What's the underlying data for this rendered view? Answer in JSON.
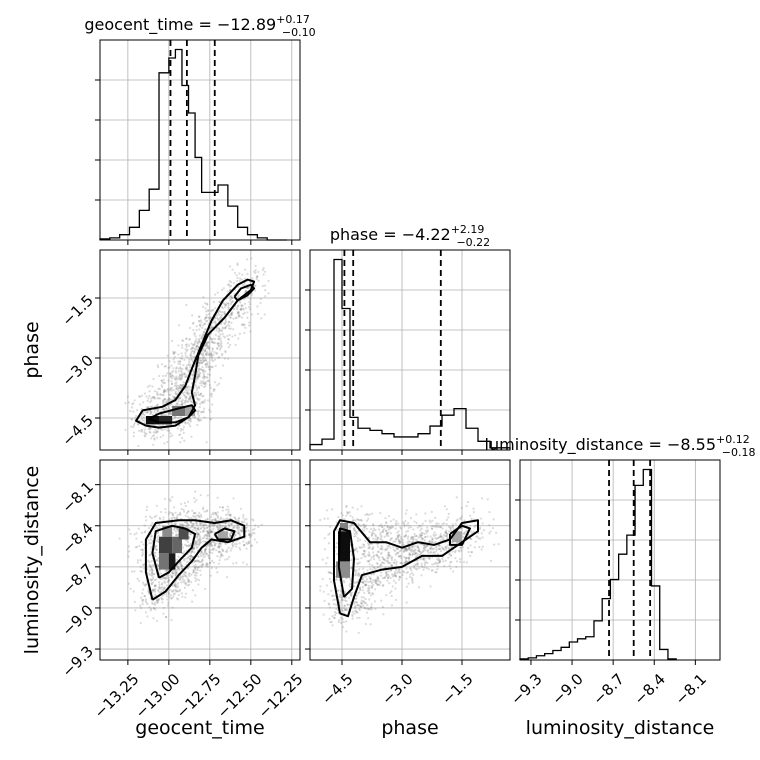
{
  "chart_data": {
    "type": "corner",
    "parameters": [
      "geocent_time",
      "phase",
      "luminosity_distance"
    ],
    "axis_labels": {
      "geocent_time": "geocent_time",
      "phase": "phase",
      "luminosity_distance": "luminosity_distance"
    },
    "ranges": {
      "geocent_time": [
        -13.42,
        -12.2
      ],
      "phase": [
        -5.3,
        -0.3
      ],
      "luminosity_distance": [
        -9.38,
        -7.92
      ]
    },
    "ticks": {
      "geocent_time": [
        -13.25,
        -13.0,
        -12.75,
        -12.5,
        -12.25
      ],
      "phase": [
        -4.5,
        -3.0,
        -1.5
      ],
      "luminosity_distance": [
        -9.3,
        -9.0,
        -8.7,
        -8.4,
        -8.1
      ]
    },
    "tick_labels": {
      "geocent_time": [
        "−13.25",
        "−13.00",
        "−12.75",
        "−12.50",
        "−12.25"
      ],
      "phase": [
        "−4.5",
        "−3.0",
        "−1.5"
      ],
      "luminosity_distance": [
        "−9.3",
        "−9.0",
        "−8.7",
        "−8.4",
        "−8.1"
      ]
    },
    "titles": {
      "geocent_time": {
        "name": "geocent_time",
        "median": "−12.89",
        "plus": "+0.17",
        "minus": "−0.10"
      },
      "phase": {
        "name": "phase",
        "median": "−4.22",
        "plus": "+2.19",
        "minus": "−0.22"
      },
      "luminosity_distance": {
        "name": "luminosity_distance",
        "median": "−8.55",
        "plus": "+0.12",
        "minus": "−0.18"
      }
    },
    "quantiles": {
      "geocent_time": [
        -12.99,
        -12.89,
        -12.72
      ],
      "phase": [
        -4.44,
        -4.22,
        -2.03
      ],
      "luminosity_distance": [
        -8.73,
        -8.55,
        -8.43
      ]
    },
    "histograms": {
      "geocent_time": {
        "edges": [
          -13.42,
          -13.36,
          -13.3,
          -13.24,
          -13.18,
          -13.12,
          -13.06,
          -13.0,
          -12.96,
          -12.92,
          -12.88,
          -12.84,
          -12.8,
          -12.76,
          -12.7,
          -12.64,
          -12.58,
          -12.52,
          -12.46,
          -12.4,
          -12.34,
          -12.28
        ],
        "counts": [
          1,
          2,
          5,
          12,
          28,
          48,
          158,
          172,
          180,
          146,
          120,
          78,
          45,
          45,
          52,
          32,
          12,
          5,
          2,
          0,
          0
        ]
      },
      "phase": {
        "edges": [
          -5.3,
          -5.0,
          -4.7,
          -4.5,
          -4.3,
          -4.1,
          -3.8,
          -3.5,
          -3.2,
          -2.9,
          -2.6,
          -2.3,
          -2.0,
          -1.7,
          -1.4,
          -1.1,
          -0.8,
          -0.3
        ],
        "counts": [
          5,
          10,
          175,
          130,
          30,
          20,
          18,
          15,
          12,
          12,
          15,
          22,
          32,
          38,
          20,
          8,
          2
        ]
      },
      "luminosity_distance": {
        "edges": [
          -9.38,
          -9.32,
          -9.26,
          -9.2,
          -9.14,
          -9.08,
          -9.02,
          -8.96,
          -8.9,
          -8.84,
          -8.78,
          -8.72,
          -8.66,
          -8.6,
          -8.54,
          -8.48,
          -8.42,
          -8.36,
          -8.3,
          -8.24
        ],
        "counts": [
          1,
          2,
          4,
          6,
          9,
          12,
          17,
          20,
          22,
          37,
          58,
          76,
          100,
          118,
          165,
          180,
          70,
          10,
          1
        ]
      }
    },
    "contours": {
      "phase_vs_geocent_time": {
        "outer": [
          [
            -13.14,
            -4.69
          ],
          [
            -13.2,
            -4.57
          ],
          [
            -13.16,
            -4.31
          ],
          [
            -13.04,
            -4.22
          ],
          [
            -12.96,
            -4.05
          ],
          [
            -12.9,
            -3.7
          ],
          [
            -12.86,
            -3.27
          ],
          [
            -12.8,
            -2.67
          ],
          [
            -12.74,
            -2.07
          ],
          [
            -12.67,
            -1.56
          ],
          [
            -12.58,
            -1.17
          ],
          [
            -12.52,
            -1.04
          ],
          [
            -12.48,
            -1.09
          ],
          [
            -12.5,
            -1.3
          ],
          [
            -12.58,
            -1.56
          ],
          [
            -12.66,
            -1.99
          ],
          [
            -12.76,
            -2.41
          ],
          [
            -12.82,
            -2.93
          ],
          [
            -12.84,
            -3.44
          ],
          [
            -12.86,
            -3.87
          ],
          [
            -12.84,
            -4.18
          ],
          [
            -12.88,
            -4.48
          ],
          [
            -12.96,
            -4.69
          ],
          [
            -13.06,
            -4.74
          ],
          [
            -13.14,
            -4.69
          ]
        ],
        "inner": [
          [
            -13.06,
            -4.61
          ],
          [
            -13.12,
            -4.52
          ],
          [
            -13.06,
            -4.39
          ],
          [
            -12.94,
            -4.26
          ],
          [
            -12.86,
            -4.18
          ],
          [
            -12.84,
            -4.31
          ],
          [
            -12.88,
            -4.48
          ],
          [
            -12.96,
            -4.61
          ],
          [
            -13.06,
            -4.61
          ]
        ],
        "upper": [
          [
            -12.6,
            -1.47
          ],
          [
            -12.56,
            -1.26
          ],
          [
            -12.5,
            -1.17
          ],
          [
            -12.48,
            -1.26
          ],
          [
            -12.52,
            -1.43
          ],
          [
            -12.58,
            -1.56
          ],
          [
            -12.6,
            -1.47
          ]
        ]
      },
      "luminosity_distance_vs_geocent_time": {
        "outer": [
          [
            -13.1,
            -8.94
          ],
          [
            -13.14,
            -8.74
          ],
          [
            -13.14,
            -8.5
          ],
          [
            -13.08,
            -8.38
          ],
          [
            -12.94,
            -8.36
          ],
          [
            -12.84,
            -8.36
          ],
          [
            -12.72,
            -8.38
          ],
          [
            -12.62,
            -8.36
          ],
          [
            -12.54,
            -8.4
          ],
          [
            -12.54,
            -8.48
          ],
          [
            -12.64,
            -8.52
          ],
          [
            -12.74,
            -8.5
          ],
          [
            -12.8,
            -8.56
          ],
          [
            -12.86,
            -8.66
          ],
          [
            -12.94,
            -8.76
          ],
          [
            -13.02,
            -8.88
          ],
          [
            -13.1,
            -8.94
          ]
        ],
        "inner": [
          [
            -13.06,
            -8.78
          ],
          [
            -13.1,
            -8.6
          ],
          [
            -13.08,
            -8.44
          ],
          [
            -12.98,
            -8.4
          ],
          [
            -12.9,
            -8.42
          ],
          [
            -12.84,
            -8.46
          ],
          [
            -12.86,
            -8.56
          ],
          [
            -12.94,
            -8.66
          ],
          [
            -13.0,
            -8.74
          ],
          [
            -13.06,
            -8.78
          ]
        ],
        "side": [
          [
            -12.72,
            -8.46
          ],
          [
            -12.66,
            -8.42
          ],
          [
            -12.6,
            -8.44
          ],
          [
            -12.62,
            -8.5
          ],
          [
            -12.7,
            -8.5
          ],
          [
            -12.72,
            -8.46
          ]
        ]
      },
      "luminosity_distance_vs_phase": {
        "outer": [
          [
            -4.55,
            -9.04
          ],
          [
            -4.7,
            -8.8
          ],
          [
            -4.7,
            -8.44
          ],
          [
            -4.55,
            -8.36
          ],
          [
            -4.2,
            -8.38
          ],
          [
            -3.8,
            -8.52
          ],
          [
            -3.4,
            -8.52
          ],
          [
            -3.0,
            -8.56
          ],
          [
            -2.6,
            -8.52
          ],
          [
            -2.2,
            -8.54
          ],
          [
            -1.8,
            -8.5
          ],
          [
            -1.5,
            -8.38
          ],
          [
            -1.1,
            -8.36
          ],
          [
            -1.1,
            -8.44
          ],
          [
            -1.5,
            -8.52
          ],
          [
            -2.0,
            -8.62
          ],
          [
            -2.5,
            -8.62
          ],
          [
            -3.0,
            -8.7
          ],
          [
            -3.5,
            -8.72
          ],
          [
            -4.0,
            -8.76
          ],
          [
            -4.2,
            -8.92
          ],
          [
            -4.35,
            -9.06
          ],
          [
            -4.55,
            -9.04
          ]
        ],
        "inner": [
          [
            -4.45,
            -8.92
          ],
          [
            -4.58,
            -8.7
          ],
          [
            -4.55,
            -8.42
          ],
          [
            -4.3,
            -8.44
          ],
          [
            -4.2,
            -8.64
          ],
          [
            -4.25,
            -8.86
          ],
          [
            -4.45,
            -8.92
          ]
        ],
        "right": [
          [
            -1.8,
            -8.46
          ],
          [
            -1.5,
            -8.4
          ],
          [
            -1.3,
            -8.42
          ],
          [
            -1.5,
            -8.54
          ],
          [
            -1.8,
            -8.54
          ],
          [
            -1.8,
            -8.46
          ]
        ]
      }
    },
    "density_blocks": {
      "phase_vs_geocent_time": [
        {
          "x": [
            -13.14,
            -13.06
          ],
          "y": [
            -4.66,
            -4.45
          ],
          "level": 0.95
        },
        {
          "x": [
            -13.06,
            -12.98
          ],
          "y": [
            -4.66,
            -4.45
          ],
          "level": 0.85
        },
        {
          "x": [
            -12.98,
            -12.9
          ],
          "y": [
            -4.45,
            -4.2
          ],
          "level": 0.55
        },
        {
          "x": [
            -12.9,
            -12.84
          ],
          "y": [
            -4.45,
            -4.2
          ],
          "level": 0.35
        }
      ],
      "luminosity_distance_vs_geocent_time": [
        {
          "x": [
            -13.06,
            -13.0
          ],
          "y": [
            -8.72,
            -8.6
          ],
          "level": 0.55
        },
        {
          "x": [
            -13.0,
            -12.96
          ],
          "y": [
            -8.72,
            -8.6
          ],
          "level": 0.9
        },
        {
          "x": [
            -13.06,
            -12.98
          ],
          "y": [
            -8.6,
            -8.48
          ],
          "level": 0.75
        },
        {
          "x": [
            -12.98,
            -12.92
          ],
          "y": [
            -8.6,
            -8.48
          ],
          "level": 0.6
        },
        {
          "x": [
            -13.04,
            -12.98
          ],
          "y": [
            -8.48,
            -8.4
          ],
          "level": 0.45
        },
        {
          "x": [
            -12.94,
            -12.88
          ],
          "y": [
            -8.5,
            -8.42
          ],
          "level": 0.7
        },
        {
          "x": [
            -12.7,
            -12.64
          ],
          "y": [
            -8.5,
            -8.44
          ],
          "level": 0.35
        }
      ],
      "luminosity_distance_vs_phase": [
        {
          "x": [
            -4.65,
            -4.3
          ],
          "y": [
            -8.78,
            -8.66
          ],
          "level": 0.45
        },
        {
          "x": [
            -4.6,
            -4.3
          ],
          "y": [
            -8.66,
            -8.44
          ],
          "level": 0.95
        },
        {
          "x": [
            -4.55,
            -4.35
          ],
          "y": [
            -8.44,
            -8.38
          ],
          "level": 0.5
        },
        {
          "x": [
            -1.75,
            -1.5
          ],
          "y": [
            -8.52,
            -8.44
          ],
          "level": 0.35
        }
      ]
    },
    "colors": {
      "ink": "#000000",
      "scatter": "#7f7f7f",
      "grid": "#b0b0b0",
      "background": "#ffffff"
    }
  }
}
